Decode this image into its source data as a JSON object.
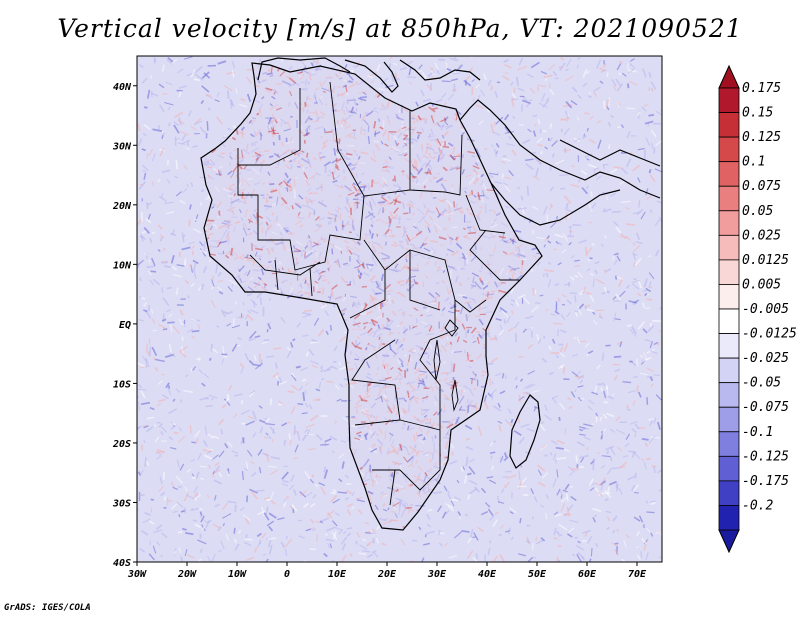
{
  "title": "Vertical velocity [m/s] at 850hPa, VT: 2021090521",
  "credit": "GrADS: IGES/COLA",
  "map": {
    "lon_range": [
      -30,
      75
    ],
    "lat_range": [
      -40,
      45
    ],
    "lat_ticks": [
      {
        "value": 40,
        "label": "40N"
      },
      {
        "value": 30,
        "label": "30N"
      },
      {
        "value": 20,
        "label": "20N"
      },
      {
        "value": 10,
        "label": "10N"
      },
      {
        "value": 0,
        "label": "EQ"
      },
      {
        "value": -10,
        "label": "10S"
      },
      {
        "value": -20,
        "label": "20S"
      },
      {
        "value": -30,
        "label": "30S"
      },
      {
        "value": -40,
        "label": "40S"
      }
    ],
    "lon_ticks": [
      {
        "value": -30,
        "label": "30W"
      },
      {
        "value": -20,
        "label": "20W"
      },
      {
        "value": -10,
        "label": "10W"
      },
      {
        "value": 0,
        "label": "0"
      },
      {
        "value": 10,
        "label": "10E"
      },
      {
        "value": 20,
        "label": "20E"
      },
      {
        "value": 30,
        "label": "30E"
      },
      {
        "value": 40,
        "label": "40E"
      },
      {
        "value": 50,
        "label": "50E"
      },
      {
        "value": 60,
        "label": "60E"
      },
      {
        "value": 70,
        "label": "70E"
      }
    ]
  },
  "colorbar": {
    "levels": [
      {
        "label": "0.175",
        "color": "#b2182b"
      },
      {
        "label": "0.15",
        "color": "#c62f35"
      },
      {
        "label": "0.125",
        "color": "#d6494a"
      },
      {
        "label": "0.1",
        "color": "#e06262"
      },
      {
        "label": "0.075",
        "color": "#ea7f7f"
      },
      {
        "label": "0.05",
        "color": "#f19d9d"
      },
      {
        "label": "0.025",
        "color": "#f6bcbc"
      },
      {
        "label": "0.0125",
        "color": "#fad7d7"
      },
      {
        "label": "0.005",
        "color": "#fdeeee"
      },
      {
        "label": "-0.005",
        "color": "#ffffff"
      },
      {
        "label": "-0.0125",
        "color": "#eaeafb"
      },
      {
        "label": "-0.025",
        "color": "#d3d3f6"
      },
      {
        "label": "-0.05",
        "color": "#b9b9f0"
      },
      {
        "label": "-0.075",
        "color": "#9d9de8"
      },
      {
        "label": "-0.1",
        "color": "#7f7fdf"
      },
      {
        "label": "-0.125",
        "color": "#6060d4"
      },
      {
        "label": "-0.175",
        "color": "#4040c4"
      },
      {
        "label": "-0.2",
        "color": "#2222b0"
      }
    ],
    "top_color": "#a01020",
    "bottom_color": "#1a1a9e"
  },
  "field_colors": {
    "background": "#e6e6f7",
    "ocean": "#dcdcf4",
    "land": "#d9d5ee",
    "up_strong": "#d6494a",
    "up_weak": "#f4b2b2",
    "down_strong": "#6a6ad8",
    "down_weak": "#b6b6ee",
    "boundary": "#000000"
  }
}
